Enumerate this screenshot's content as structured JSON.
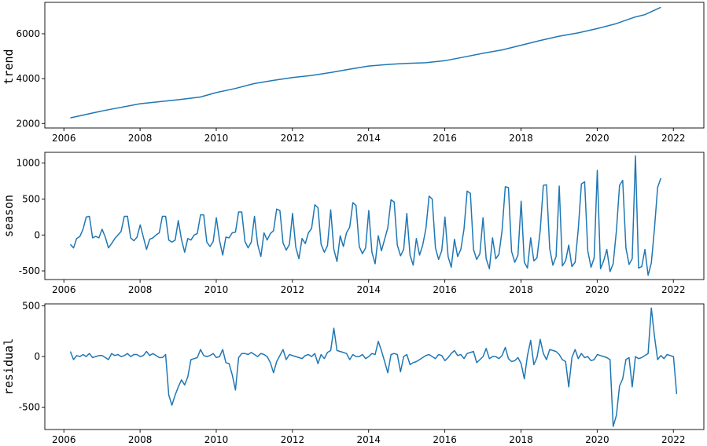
{
  "chart_data": [
    {
      "type": "line",
      "ylabel": "trend",
      "xlabel": "",
      "title": "",
      "xlim": [
        2005.5,
        2022.8
      ],
      "ylim": [
        1800,
        7400
      ],
      "xticks": [
        2006,
        2008,
        2010,
        2012,
        2014,
        2016,
        2018,
        2020,
        2022
      ],
      "yticks": [
        2000,
        4000,
        6000
      ],
      "grid": false,
      "color": "#1f77b4",
      "x": [
        2006.17,
        2007.0,
        2008.0,
        2009.0,
        2009.58,
        2010.0,
        2010.5,
        2011.0,
        2011.5,
        2012.0,
        2012.5,
        2013.0,
        2013.5,
        2014.0,
        2014.5,
        2015.0,
        2015.5,
        2016.0,
        2016.5,
        2017.0,
        2017.5,
        2018.0,
        2018.5,
        2019.0,
        2019.5,
        2020.0,
        2020.5,
        2021.0,
        2021.25,
        2021.67
      ],
      "y": [
        2250,
        2560,
        2880,
        3060,
        3180,
        3380,
        3560,
        3780,
        3920,
        4050,
        4140,
        4270,
        4420,
        4560,
        4630,
        4680,
        4710,
        4800,
        4960,
        5130,
        5280,
        5490,
        5700,
        5890,
        6040,
        6230,
        6450,
        6750,
        6850,
        7180
      ]
    },
    {
      "type": "line",
      "ylabel": "season",
      "xlabel": "",
      "title": "",
      "xlim": [
        2005.5,
        2022.8
      ],
      "ylim": [
        -620,
        1150
      ],
      "xticks": [
        2006,
        2008,
        2010,
        2012,
        2014,
        2016,
        2018,
        2020,
        2022
      ],
      "yticks": [
        -500,
        0,
        500,
        1000
      ],
      "grid": false,
      "color": "#1f77b4",
      "start_year": 2006.17,
      "step": 0.0833333,
      "values": [
        -130,
        -180,
        -50,
        -20,
        80,
        250,
        260,
        -40,
        -20,
        -40,
        80,
        -30,
        -180,
        -120,
        -50,
        0,
        50,
        260,
        260,
        -40,
        -80,
        -30,
        140,
        -30,
        -200,
        -60,
        -40,
        0,
        30,
        260,
        260,
        -70,
        -100,
        -70,
        200,
        -60,
        -240,
        -50,
        -70,
        0,
        20,
        280,
        280,
        -100,
        -160,
        -90,
        240,
        -80,
        -280,
        -30,
        -40,
        30,
        40,
        320,
        320,
        -90,
        -180,
        -100,
        260,
        -130,
        -300,
        30,
        -70,
        20,
        60,
        360,
        340,
        -110,
        -210,
        -130,
        300,
        -170,
        -330,
        -50,
        -120,
        30,
        90,
        420,
        380,
        -130,
        -240,
        -150,
        350,
        -200,
        -370,
        -10,
        -160,
        30,
        110,
        450,
        410,
        -160,
        -260,
        -180,
        340,
        -240,
        -400,
        -10,
        -220,
        -60,
        100,
        490,
        460,
        -140,
        -290,
        -200,
        300,
        -280,
        -420,
        -50,
        -280,
        -140,
        90,
        540,
        500,
        -180,
        -340,
        -220,
        250,
        -300,
        -450,
        -60,
        -300,
        -200,
        80,
        610,
        580,
        -200,
        -340,
        -260,
        240,
        -330,
        -470,
        -40,
        -330,
        -270,
        60,
        670,
        660,
        -230,
        -380,
        -280,
        470,
        -380,
        -460,
        -40,
        -360,
        -320,
        60,
        690,
        700,
        -190,
        -420,
        -300,
        680,
        -430,
        -360,
        -140,
        -440,
        -380,
        80,
        710,
        740,
        -220,
        -450,
        -320,
        900,
        -470,
        -360,
        -200,
        -510,
        -400,
        60,
        690,
        760,
        -180,
        -410,
        -330,
        1100,
        -460,
        -440,
        -200,
        -560,
        -390,
        90,
        660,
        790
      ]
    },
    {
      "type": "line",
      "ylabel": "residual",
      "xlabel": "",
      "title": "",
      "xlim": [
        2005.5,
        2022.8
      ],
      "ylim": [
        -720,
        520
      ],
      "xticks": [
        2006,
        2008,
        2010,
        2012,
        2014,
        2016,
        2018,
        2020,
        2022
      ],
      "yticks": [
        -500,
        0,
        500
      ],
      "grid": false,
      "color": "#1f77b4",
      "start_year": 2006.17,
      "step": 0.0833333,
      "values": [
        50,
        -30,
        10,
        0,
        20,
        0,
        30,
        -10,
        0,
        10,
        10,
        -10,
        -30,
        30,
        10,
        20,
        0,
        10,
        30,
        0,
        20,
        20,
        0,
        10,
        50,
        10,
        30,
        10,
        -10,
        -10,
        20,
        -380,
        -480,
        -380,
        -300,
        -230,
        -280,
        -200,
        -30,
        -20,
        -10,
        70,
        10,
        0,
        10,
        30,
        -10,
        0,
        70,
        -60,
        -70,
        -180,
        -330,
        -10,
        30,
        30,
        20,
        40,
        20,
        0,
        30,
        20,
        0,
        -60,
        -160,
        -50,
        10,
        70,
        -30,
        20,
        10,
        0,
        -10,
        -20,
        10,
        20,
        0,
        30,
        -70,
        20,
        -20,
        40,
        60,
        280,
        60,
        50,
        40,
        30,
        -30,
        20,
        0,
        0,
        20,
        -20,
        0,
        30,
        20,
        150,
        60,
        -50,
        -160,
        20,
        30,
        20,
        -150,
        0,
        20,
        -80,
        -60,
        -50,
        -30,
        -10,
        10,
        20,
        0,
        -20,
        20,
        10,
        -40,
        -10,
        30,
        60,
        10,
        20,
        -20,
        30,
        40,
        50,
        -60,
        -30,
        0,
        80,
        -20,
        0,
        0,
        -20,
        10,
        90,
        -20,
        -50,
        -40,
        -10,
        -70,
        -220,
        10,
        160,
        -80,
        -10,
        170,
        30,
        -30,
        70,
        60,
        50,
        20,
        -30,
        -50,
        -300,
        -10,
        70,
        -20,
        30,
        -10,
        0,
        -40,
        -30,
        20,
        10,
        0,
        -10,
        -30,
        -690,
        -580,
        -290,
        -220,
        -30,
        -10,
        -300,
        0,
        -20,
        -10,
        10,
        30,
        480,
        200,
        -30,
        10,
        -20,
        20,
        10,
        0,
        -370
      ]
    }
  ]
}
